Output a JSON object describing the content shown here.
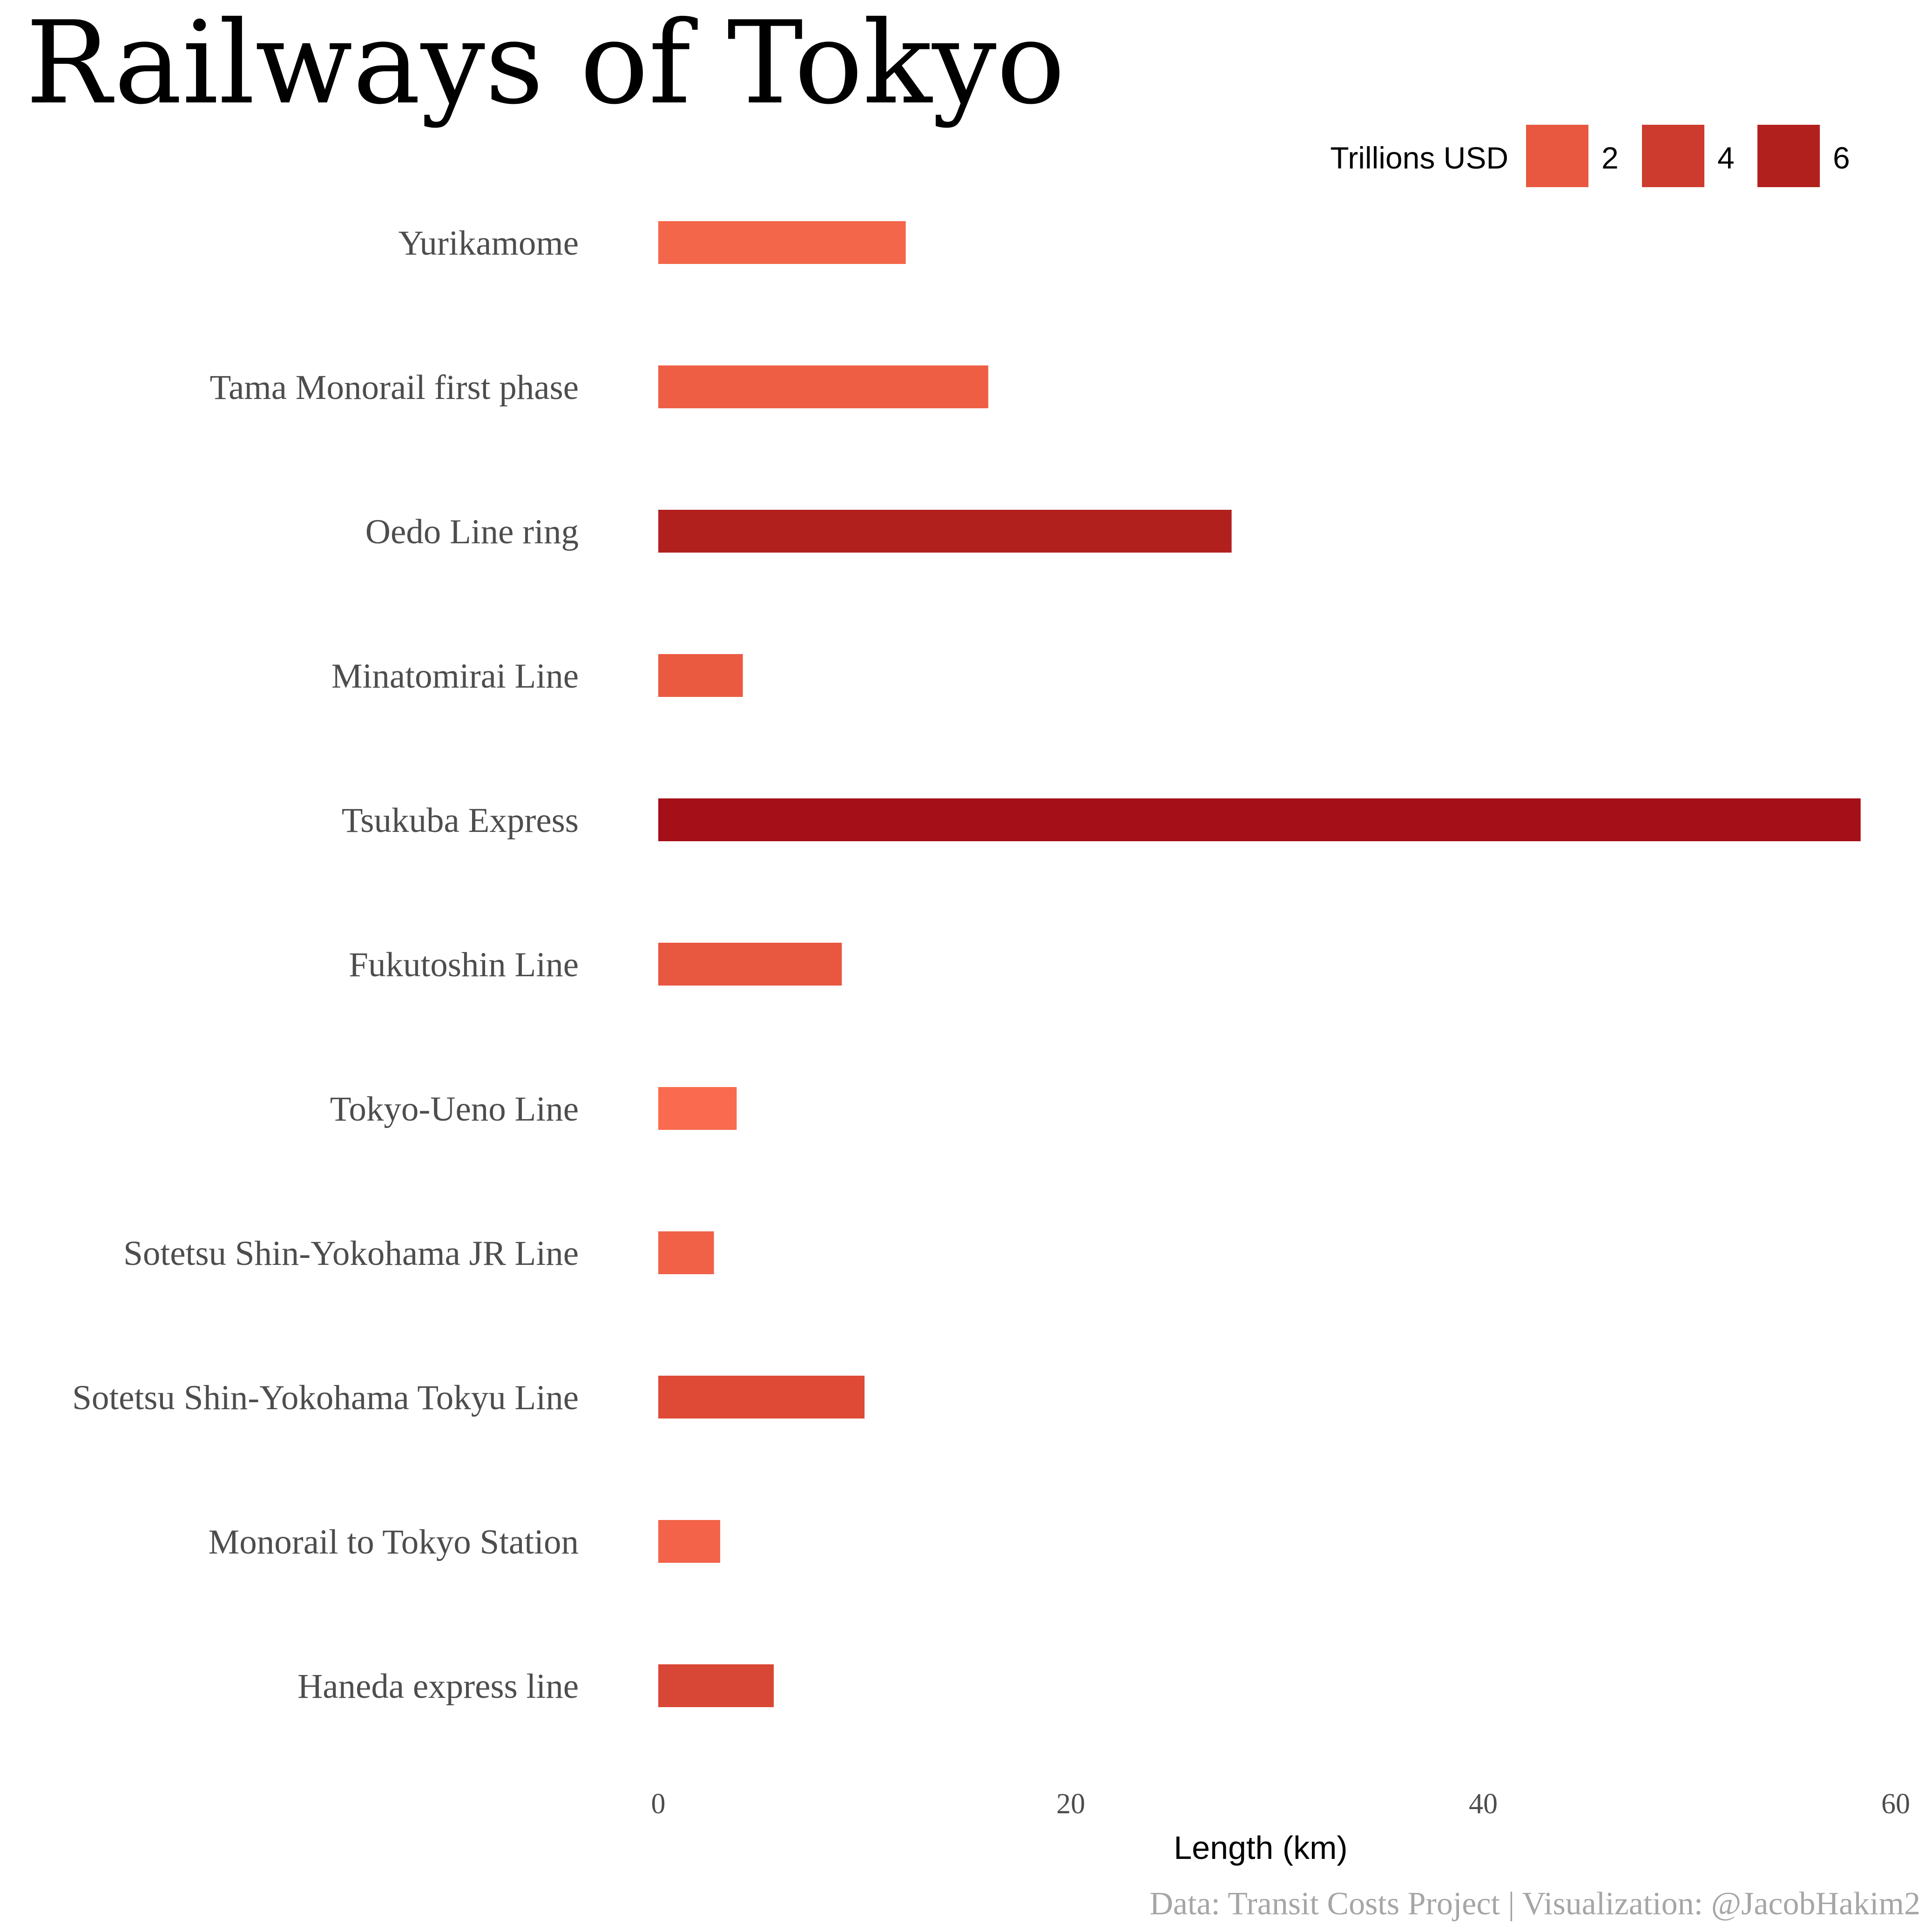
{
  "chart_data": {
    "type": "bar",
    "orientation": "horizontal",
    "title": "Railways of Tokyo",
    "xlabel": "Length (km)",
    "ylabel": "",
    "xlim": [
      0,
      60
    ],
    "xticks": [
      0,
      20,
      40,
      60
    ],
    "grid": false,
    "caption": "Data: Transit Costs Project | Visualization: @JacobHakim2",
    "categories": [
      "Yurikamome",
      "Tama Monorail first phase",
      "Oedo Line ring",
      "Minatomirai Line",
      "Tsukuba Express",
      "Fukutoshin Line",
      "Tokyo-Ueno Line",
      "Sotetsu Shin-Yokohama JR Line",
      "Sotetsu Shin-Yokohama Tokyu Line",
      "Monorail to Tokyo Station",
      "Haneda express line"
    ],
    "values": [
      12.0,
      16.0,
      27.8,
      4.1,
      58.3,
      8.9,
      3.8,
      2.7,
      10.0,
      3.0,
      5.6
    ],
    "bar_colors": [
      "#f4664a",
      "#ee5e44",
      "#b2201e",
      "#ea5a41",
      "#a50f18",
      "#e8573f",
      "#fa6a4e",
      "#f06148",
      "#de4a35",
      "#f26349",
      "#d84735"
    ],
    "legend": {
      "title": "Trillions USD",
      "position": "top-right",
      "entries": [
        {
          "label": "2",
          "color": "#e8573f"
        },
        {
          "label": "4",
          "color": "#cc3b2e"
        },
        {
          "label": "6",
          "color": "#b2201e"
        }
      ]
    }
  }
}
